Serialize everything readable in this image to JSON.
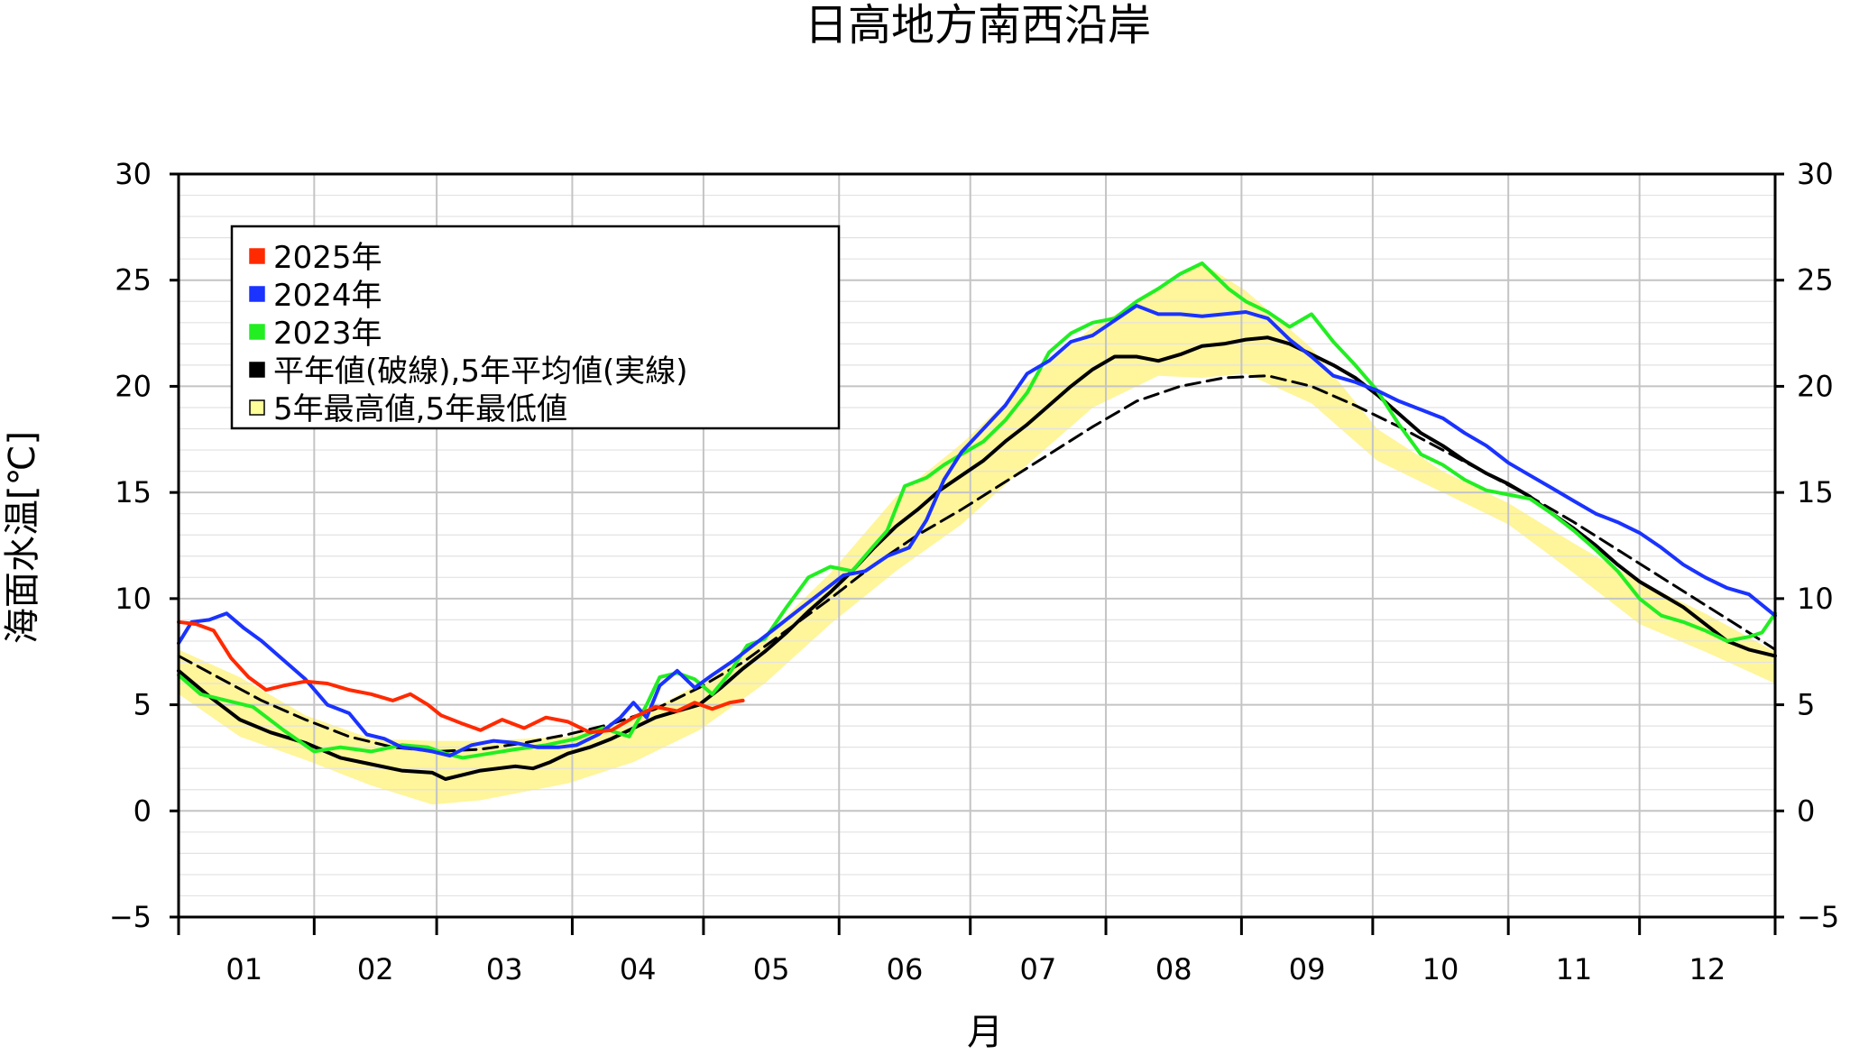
{
  "chart_data": {
    "type": "line",
    "title": "日高地方南西沿岸",
    "xlabel": "月",
    "ylabel": "海面水温[℃]",
    "ylim": [
      -5,
      30
    ],
    "yticks": [
      -5,
      0,
      5,
      10,
      15,
      20,
      25,
      30
    ],
    "ytick_labels": [
      "−5",
      "0",
      "5",
      "10",
      "15",
      "20",
      "25",
      "30"
    ],
    "xlim": [
      1,
      366
    ],
    "month_ticks": [
      1,
      32,
      60,
      91,
      121,
      152,
      182,
      213,
      244,
      274,
      305,
      335,
      366
    ],
    "month_labels": [
      "01",
      "02",
      "03",
      "04",
      "05",
      "06",
      "07",
      "08",
      "09",
      "10",
      "11",
      "12"
    ],
    "month_label_days": [
      16,
      46,
      75.5,
      106,
      136.5,
      167,
      197.5,
      228.5,
      259,
      289.5,
      320,
      350.5
    ],
    "grid": true,
    "legend_position": "top-left",
    "legend": [
      {
        "label": "2025年",
        "color": "#ff2a00",
        "fill": "#ff2a00"
      },
      {
        "label": "2024年",
        "color": "#1a33ff",
        "fill": "#1a33ff"
      },
      {
        "label": "2023年",
        "color": "#22ee22",
        "fill": "#22ee22"
      },
      {
        "label": "平年値(破線),5年平均値(実線)",
        "color": "#000000",
        "fill": "#000000"
      },
      {
        "label": "5年最高値,5年最低値",
        "color": "#000000",
        "fill": "#ffff99"
      }
    ],
    "band": {
      "name": "5年最高値,5年最低値",
      "color": "#fff59a",
      "x": [
        1,
        15,
        30,
        45,
        59,
        70,
        90,
        105,
        120,
        135,
        150,
        165,
        180,
        195,
        210,
        225,
        235,
        245,
        260,
        275,
        290,
        305,
        320,
        335,
        350,
        366
      ],
      "upper": [
        7.6,
        6.3,
        4.5,
        3.4,
        3.3,
        3.3,
        3.5,
        4.3,
        6.0,
        8.2,
        11.2,
        14.8,
        17.3,
        20.2,
        22.8,
        24.5,
        25.8,
        24.5,
        21.8,
        18.0,
        16.0,
        14.5,
        12.6,
        10.8,
        9.3,
        7.5
      ],
      "lower": [
        5.5,
        3.5,
        2.4,
        1.2,
        0.3,
        0.5,
        1.3,
        2.3,
        3.8,
        6.0,
        8.8,
        11.3,
        13.5,
        16.3,
        19.0,
        20.5,
        20.4,
        20.6,
        19.2,
        16.5,
        15.0,
        13.5,
        11.2,
        8.8,
        7.5,
        6.0
      ]
    },
    "series": [
      {
        "name": "平年値(破線)",
        "color": "#000000",
        "dash": true,
        "x": [
          1,
          10,
          20,
          30,
          40,
          50,
          60,
          70,
          80,
          90,
          100,
          110,
          120,
          130,
          140,
          150,
          160,
          170,
          180,
          190,
          200,
          210,
          220,
          230,
          240,
          250,
          260,
          270,
          280,
          290,
          300,
          310,
          320,
          330,
          340,
          350,
          360,
          366
        ],
        "y": [
          7.3,
          6.3,
          5.2,
          4.3,
          3.5,
          3.0,
          2.8,
          2.9,
          3.2,
          3.6,
          4.1,
          4.8,
          5.8,
          7.0,
          8.5,
          10.0,
          11.6,
          13.0,
          14.2,
          15.5,
          16.8,
          18.1,
          19.3,
          20.0,
          20.4,
          20.5,
          20.0,
          19.1,
          18.1,
          17.0,
          15.9,
          14.8,
          13.6,
          12.3,
          11.0,
          9.7,
          8.4,
          7.6
        ]
      },
      {
        "name": "5年平均値(実線)",
        "color": "#000000",
        "dash": false,
        "x": [
          1,
          8,
          15,
          22,
          30,
          38,
          45,
          52,
          59,
          62,
          70,
          78,
          82,
          86,
          90,
          95,
          100,
          105,
          110,
          115,
          120,
          125,
          130,
          135,
          140,
          145,
          150,
          155,
          160,
          165,
          170,
          175,
          180,
          185,
          190,
          195,
          200,
          205,
          210,
          215,
          220,
          225,
          230,
          235,
          240,
          245,
          250,
          255,
          260,
          265,
          270,
          275,
          280,
          285,
          290,
          295,
          300,
          305,
          310,
          315,
          320,
          325,
          330,
          335,
          340,
          345,
          350,
          355,
          360,
          366
        ],
        "y": [
          6.6,
          5.4,
          4.3,
          3.7,
          3.2,
          2.5,
          2.2,
          1.9,
          1.8,
          1.5,
          1.9,
          2.1,
          2.0,
          2.3,
          2.7,
          3.0,
          3.4,
          3.9,
          4.4,
          4.7,
          5.0,
          5.8,
          6.7,
          7.5,
          8.4,
          9.4,
          10.3,
          11.3,
          12.4,
          13.4,
          14.2,
          15.1,
          15.8,
          16.5,
          17.4,
          18.2,
          19.1,
          20.0,
          20.8,
          21.4,
          21.4,
          21.2,
          21.5,
          21.9,
          22.0,
          22.2,
          22.3,
          22.0,
          21.5,
          21.0,
          20.4,
          19.6,
          18.7,
          17.8,
          17.2,
          16.5,
          15.9,
          15.4,
          14.8,
          14.0,
          13.3,
          12.5,
          11.6,
          10.8,
          10.2,
          9.6,
          8.8,
          8.0,
          7.6,
          7.3
        ]
      },
      {
        "name": "2023年",
        "color": "#22ee22",
        "dash": false,
        "x": [
          1,
          6,
          12,
          18,
          25,
          32,
          38,
          45,
          52,
          58,
          62,
          66,
          72,
          78,
          85,
          92,
          98,
          104,
          108,
          111,
          115,
          119,
          123,
          127,
          131,
          135,
          140,
          145,
          150,
          155,
          160,
          163,
          167,
          172,
          176,
          180,
          185,
          190,
          195,
          200,
          205,
          210,
          215,
          220,
          225,
          230,
          235,
          238,
          241,
          245,
          250,
          255,
          260,
          265,
          270,
          275,
          280,
          285,
          290,
          295,
          300,
          305,
          310,
          315,
          320,
          325,
          330,
          335,
          340,
          345,
          350,
          355,
          360,
          363,
          366
        ],
        "y": [
          6.4,
          5.5,
          5.2,
          4.9,
          3.8,
          2.8,
          3.0,
          2.8,
          3.1,
          3.0,
          2.7,
          2.5,
          2.7,
          2.9,
          3.1,
          3.4,
          3.9,
          3.5,
          5.0,
          6.3,
          6.5,
          6.2,
          5.5,
          6.5,
          7.8,
          8.1,
          9.6,
          11.0,
          11.5,
          11.3,
          12.5,
          13.2,
          15.3,
          15.7,
          16.3,
          16.8,
          17.4,
          18.4,
          19.7,
          21.6,
          22.5,
          23.0,
          23.2,
          24.0,
          24.6,
          25.3,
          25.8,
          25.2,
          24.6,
          24.0,
          23.5,
          22.8,
          23.4,
          22.1,
          21.0,
          19.8,
          18.2,
          16.8,
          16.3,
          15.6,
          15.1,
          14.9,
          14.7,
          14.0,
          13.2,
          12.3,
          11.3,
          10.0,
          9.2,
          8.9,
          8.5,
          8.0,
          8.2,
          8.4,
          9.3
        ]
      },
      {
        "name": "2024年",
        "color": "#1a33ff",
        "dash": false,
        "x": [
          1,
          4,
          8,
          12,
          16,
          20,
          25,
          30,
          35,
          40,
          44,
          48,
          52,
          56,
          59,
          63,
          68,
          73,
          78,
          83,
          88,
          92,
          97,
          102,
          105,
          108,
          111,
          115,
          119,
          123,
          128,
          133,
          138,
          143,
          148,
          153,
          158,
          163,
          168,
          172,
          176,
          180,
          185,
          190,
          195,
          200,
          205,
          210,
          215,
          220,
          225,
          230,
          235,
          240,
          245,
          250,
          255,
          260,
          265,
          270,
          275,
          280,
          285,
          290,
          295,
          300,
          305,
          310,
          315,
          320,
          325,
          330,
          335,
          340,
          345,
          350,
          355,
          360,
          366
        ],
        "y": [
          7.9,
          8.9,
          9.0,
          9.3,
          8.6,
          8.0,
          7.1,
          6.2,
          5.0,
          4.6,
          3.6,
          3.4,
          3.0,
          2.9,
          2.8,
          2.6,
          3.1,
          3.3,
          3.2,
          3.0,
          3.0,
          3.1,
          3.6,
          4.4,
          5.1,
          4.4,
          5.9,
          6.6,
          5.8,
          6.4,
          7.1,
          7.9,
          8.7,
          9.5,
          10.3,
          11.1,
          11.3,
          12.0,
          12.4,
          13.7,
          15.6,
          16.9,
          18.0,
          19.1,
          20.6,
          21.2,
          22.1,
          22.4,
          23.1,
          23.8,
          23.4,
          23.4,
          23.3,
          23.4,
          23.5,
          23.2,
          22.2,
          21.4,
          20.5,
          20.2,
          19.8,
          19.3,
          18.9,
          18.5,
          17.8,
          17.2,
          16.4,
          15.8,
          15.2,
          14.6,
          14.0,
          13.6,
          13.1,
          12.4,
          11.6,
          11.0,
          10.5,
          10.2,
          9.2
        ]
      },
      {
        "name": "2025年",
        "color": "#ff2a00",
        "dash": false,
        "x": [
          1,
          5,
          9,
          13,
          17,
          21,
          25,
          30,
          35,
          40,
          45,
          50,
          54,
          58,
          61,
          66,
          70,
          75,
          80,
          85,
          90,
          95,
          100,
          105,
          110,
          115,
          119,
          123,
          127,
          130
        ],
        "y": [
          8.9,
          8.8,
          8.5,
          7.2,
          6.3,
          5.7,
          5.9,
          6.1,
          6.0,
          5.7,
          5.5,
          5.2,
          5.5,
          5.0,
          4.5,
          4.1,
          3.8,
          4.3,
          3.9,
          4.4,
          4.2,
          3.7,
          3.8,
          4.4,
          4.9,
          4.7,
          5.1,
          4.8,
          5.1,
          5.2
        ]
      }
    ]
  }
}
